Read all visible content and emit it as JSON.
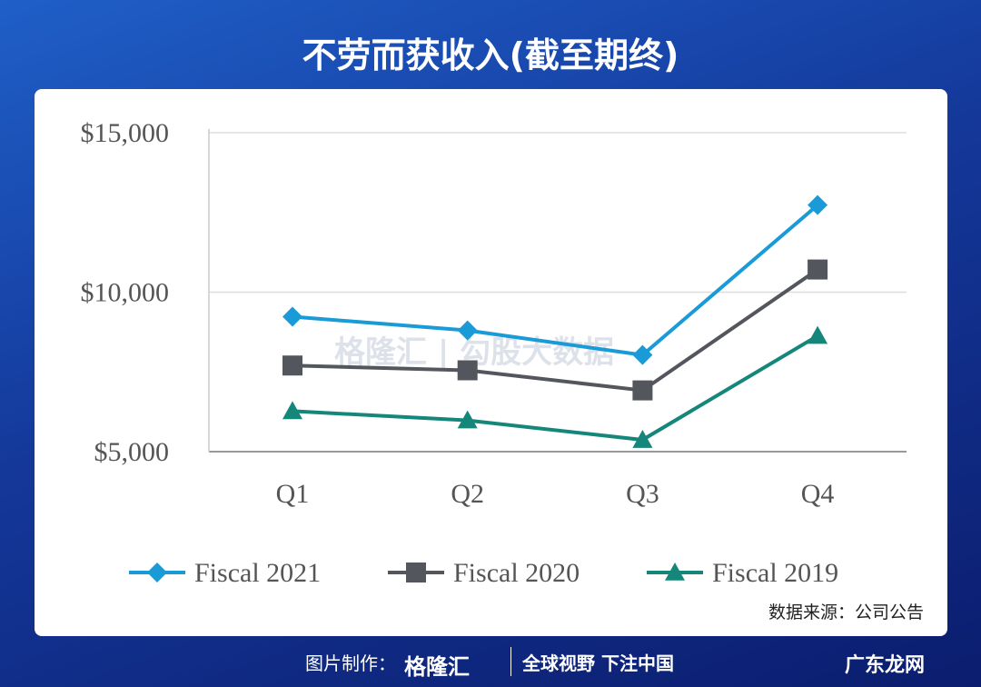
{
  "title": "不劳而获收入(截至期终)",
  "source": "数据来源：公司公告",
  "watermark": "格隆汇 | 勾股大数据",
  "footer": {
    "made_by": "图片制作：",
    "brand": "格隆汇",
    "slogan": "全球视野 下注中国",
    "corner": "广东龙网"
  },
  "chart_data": {
    "type": "line",
    "title": "不劳而获收入(截至期终)",
    "categories": [
      "Q1",
      "Q2",
      "Q3",
      "Q4"
    ],
    "y_ticks": [
      {
        "value": 5000,
        "label": "$5,000"
      },
      {
        "value": 10000,
        "label": "$10,000"
      },
      {
        "value": 15000,
        "label": "$15,000"
      }
    ],
    "ylim": [
      5000,
      15000
    ],
    "grid": true,
    "legend_placement": "bottom",
    "series": [
      {
        "name": "Fiscal 2021",
        "marker": "diamond",
        "color": "#1a9bd7",
        "values": [
          9230,
          8800,
          8030,
          12730
        ]
      },
      {
        "name": "Fiscal 2020",
        "marker": "square",
        "color": "#53565c",
        "values": [
          7700,
          7550,
          6920,
          10710
        ]
      },
      {
        "name": "Fiscal 2019",
        "marker": "triangle",
        "color": "#14877a",
        "values": [
          6270,
          5980,
          5370,
          8630
        ]
      }
    ]
  }
}
